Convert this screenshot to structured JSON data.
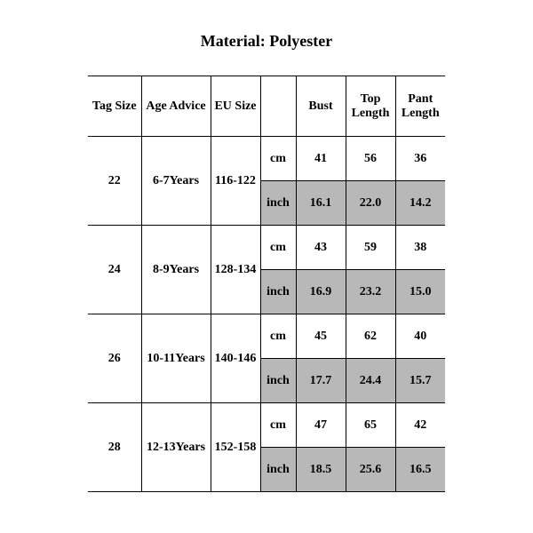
{
  "title": "Material: Polyester",
  "table": {
    "columns": {
      "tagSize": "Tag Size",
      "ageAdvice": "Age Advice",
      "euSize": "EU Size",
      "unitBlank": "",
      "bust": "Bust",
      "topLength": "Top Length",
      "pantLength": "Pant Length"
    },
    "units": {
      "cm": "cm",
      "inch": "inch"
    },
    "rows": [
      {
        "tagSize": "22",
        "ageAdvice": "6-7Years",
        "euSize": "116-122",
        "cm": {
          "bust": "41",
          "topLength": "56",
          "pantLength": "36"
        },
        "inch": {
          "bust": "16.1",
          "topLength": "22.0",
          "pantLength": "14.2"
        }
      },
      {
        "tagSize": "24",
        "ageAdvice": "8-9Years",
        "euSize": "128-134",
        "cm": {
          "bust": "43",
          "topLength": "59",
          "pantLength": "38"
        },
        "inch": {
          "bust": "16.9",
          "topLength": "23.2",
          "pantLength": "15.0"
        }
      },
      {
        "tagSize": "26",
        "ageAdvice": "10-11Years",
        "euSize": "140-146",
        "cm": {
          "bust": "45",
          "topLength": "62",
          "pantLength": "40"
        },
        "inch": {
          "bust": "17.7",
          "topLength": "24.4",
          "pantLength": "15.7"
        }
      },
      {
        "tagSize": "28",
        "ageAdvice": "12-13Years",
        "euSize": "152-158",
        "cm": {
          "bust": "47",
          "topLength": "65",
          "pantLength": "42"
        },
        "inch": {
          "bust": "18.5",
          "topLength": "25.6",
          "pantLength": "16.5"
        }
      }
    ],
    "style": {
      "colWidthsPx": {
        "tagSize": 60,
        "ageAdvice": 78,
        "euSize": 56,
        "unit": 40,
        "bust": 56,
        "topLength": 56,
        "pantLength": 56
      },
      "headerHeightPx": 68,
      "rowHeightPx": 50,
      "borderColor": "#000000",
      "shadedBg": "#b8b8b8",
      "background": "#ffffff",
      "fontFamily": "Times New Roman",
      "fontSizePt": 11,
      "titleFontSizePt": 14,
      "outerLeftRightBorders": false
    }
  }
}
